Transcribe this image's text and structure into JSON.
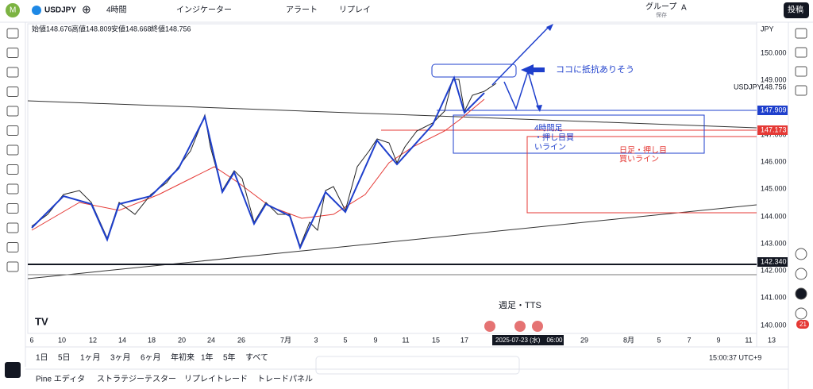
{
  "toolbar": {
    "symbol": "USDJPY",
    "interval": "4時間",
    "indicators": "インジケーター",
    "alert": "アラート",
    "replay": "リプレイ",
    "group": "グループ",
    "saved": "保存",
    "font": "A",
    "post": "投稿"
  },
  "legend": {
    "open": "始値148.676",
    "high": "高値148.809",
    "low": "安値148.668",
    "close": "終値148.756"
  },
  "price_axis": {
    "currency": "JPY",
    "labels": [
      "150.000",
      "149.000",
      "147.000",
      "146.000",
      "145.000",
      "144.000",
      "143.000",
      "142.000",
      "141.000",
      "140.000"
    ],
    "symbol_tag": "USDJPY",
    "last": "148.756",
    "blue_level": "147.909",
    "red_level": "147.173",
    "black_level": "142.340"
  },
  "date_axis": {
    "labels": [
      "6",
      "10",
      "12",
      "14",
      "18",
      "20",
      "24",
      "26",
      "7月",
      "3",
      "5",
      "9",
      "11",
      "15",
      "17",
      "29",
      "8月",
      "5",
      "7",
      "9",
      "11",
      "13"
    ],
    "crosshair": "2025-07-23 (水)　06:00"
  },
  "annotations": {
    "resistance": "ココに抵抗ありそう",
    "h4_line": [
      "4時間足",
      "・押し目買",
      "いライン"
    ],
    "daily_line": [
      "日足・押し目",
      "買いライン"
    ],
    "weekly": "週足・TTS"
  },
  "ranges": [
    "1日",
    "5日",
    "1ヶ月",
    "3ヶ月",
    "6ヶ月",
    "年初来",
    "1年",
    "5年",
    "すべて"
  ],
  "clock": "15:00:37 UTC+9",
  "panels": [
    "Pine エディタ",
    "ストラテジーテスター",
    "リプレイトレード",
    "トレードパネル"
  ],
  "badge": "21"
}
